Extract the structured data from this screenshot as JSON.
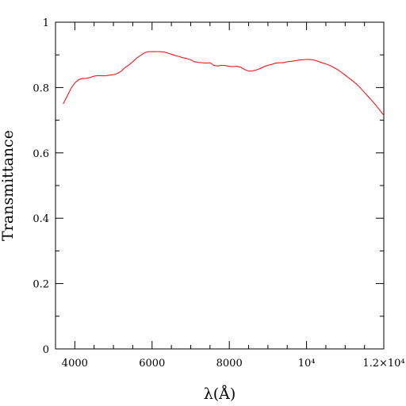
{
  "chart_data": {
    "type": "line",
    "xlabel": "λ(Å)",
    "ylabel": "Transmittance",
    "xlim": [
      3500,
      12000
    ],
    "ylim": [
      0,
      1
    ],
    "grid": false,
    "xticks": [
      {
        "value": 4000,
        "label": "4000"
      },
      {
        "value": 6000,
        "label": "6000"
      },
      {
        "value": 8000,
        "label": "8000"
      },
      {
        "value": 10000,
        "label": "10⁴"
      },
      {
        "value": 12000,
        "label": "1.2×10⁴"
      }
    ],
    "xminor_step": 500,
    "yticks": [
      {
        "value": 0,
        "label": "0"
      },
      {
        "value": 0.2,
        "label": "0.2"
      },
      {
        "value": 0.4,
        "label": "0.4"
      },
      {
        "value": 0.6,
        "label": "0.6"
      },
      {
        "value": 0.8,
        "label": "0.8"
      },
      {
        "value": 1,
        "label": "1"
      }
    ],
    "yminor_step": 0.1,
    "series": [
      {
        "color": "#ff0000",
        "x": [
          3700,
          3800,
          3900,
          4000,
          4100,
          4200,
          4300,
          4400,
          4500,
          4600,
          4700,
          4800,
          4900,
          5000,
          5100,
          5200,
          5300,
          5400,
          5500,
          5600,
          5700,
          5800,
          5900,
          6000,
          6100,
          6200,
          6300,
          6400,
          6500,
          6600,
          6700,
          6800,
          6900,
          7000,
          7100,
          7200,
          7300,
          7400,
          7500,
          7600,
          7700,
          7800,
          7900,
          8000,
          8100,
          8200,
          8300,
          8400,
          8500,
          8600,
          8700,
          8800,
          8900,
          9000,
          9100,
          9200,
          9300,
          9400,
          9500,
          9600,
          9700,
          9800,
          9900,
          10000,
          10100,
          10200,
          10300,
          10400,
          10500,
          10600,
          10700,
          10800,
          10900,
          11000,
          11100,
          11200,
          11300,
          11400,
          11500,
          11600,
          11700,
          11800,
          11900,
          12000
        ],
        "y": [
          0.75,
          0.773,
          0.797,
          0.814,
          0.824,
          0.828,
          0.828,
          0.831,
          0.835,
          0.837,
          0.836,
          0.836,
          0.838,
          0.839,
          0.843,
          0.85,
          0.861,
          0.869,
          0.879,
          0.89,
          0.898,
          0.906,
          0.91,
          0.91,
          0.91,
          0.91,
          0.909,
          0.906,
          0.902,
          0.898,
          0.895,
          0.891,
          0.889,
          0.885,
          0.879,
          0.877,
          0.876,
          0.875,
          0.876,
          0.868,
          0.866,
          0.868,
          0.867,
          0.865,
          0.864,
          0.865,
          0.862,
          0.855,
          0.85,
          0.851,
          0.854,
          0.858,
          0.864,
          0.868,
          0.871,
          0.875,
          0.876,
          0.876,
          0.879,
          0.88,
          0.882,
          0.884,
          0.885,
          0.886,
          0.886,
          0.884,
          0.88,
          0.876,
          0.872,
          0.868,
          0.862,
          0.855,
          0.847,
          0.838,
          0.829,
          0.82,
          0.81,
          0.798,
          0.785,
          0.772,
          0.759,
          0.745,
          0.73,
          0.715
        ]
      }
    ]
  }
}
